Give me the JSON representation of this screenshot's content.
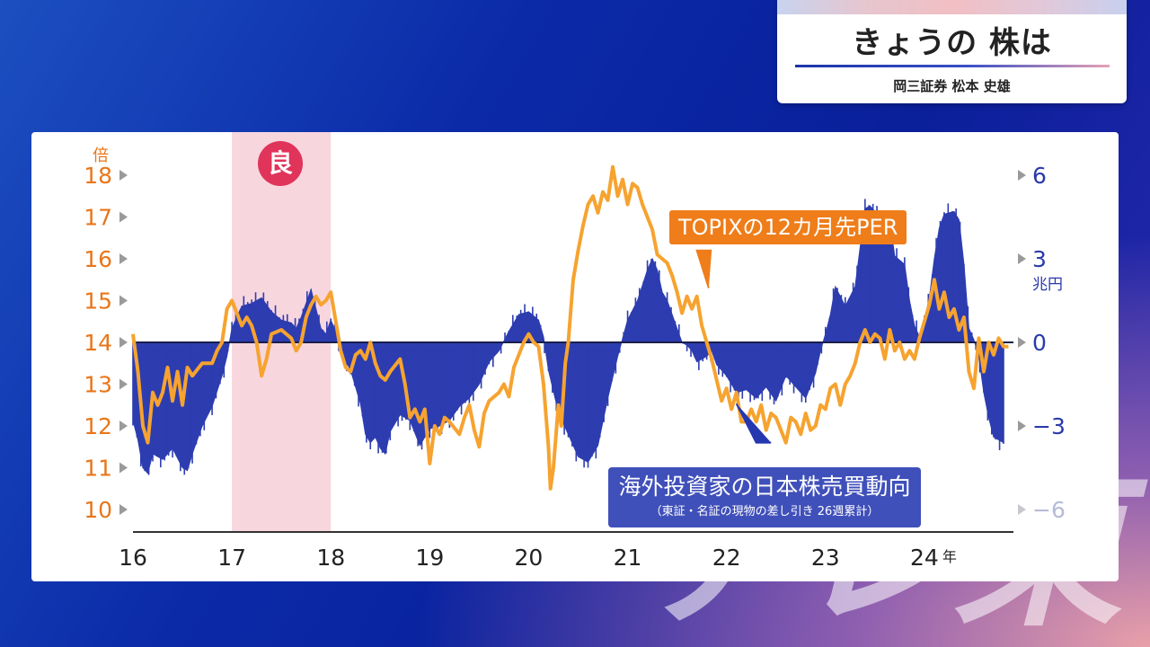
{
  "header": {
    "title": "きょうの 株は",
    "speaker": "岡三証券 松本 史雄"
  },
  "watermark": "テレ東",
  "chart_data": {
    "type": "line+area",
    "left_axis": {
      "unit": "倍",
      "ticks": [
        18,
        17,
        16,
        15,
        14,
        13,
        12,
        11,
        10
      ],
      "range": [
        10,
        18
      ],
      "color": "#e8761a"
    },
    "right_axis": {
      "unit": "兆円",
      "ticks": [
        6,
        3,
        0,
        -3,
        -6
      ],
      "tick_labels": [
        "6",
        "3",
        "0",
        "−3",
        "−6"
      ],
      "range": [
        -6,
        6
      ],
      "color": "#2a3aa8"
    },
    "x_axis": {
      "ticks": [
        "16",
        "17",
        "18",
        "19",
        "20",
        "21",
        "22",
        "23",
        "24"
      ],
      "suffix": "年",
      "range": [
        16,
        24.9
      ]
    },
    "highlight": {
      "label": "良",
      "from": 17,
      "to": 18,
      "color": "#f8d6de"
    },
    "series": [
      {
        "name": "TOPIXの12カ月先PER",
        "axis": "left",
        "color": "#f6a32f",
        "points": [
          [
            16.0,
            14.2
          ],
          [
            16.05,
            13.3
          ],
          [
            16.1,
            12.0
          ],
          [
            16.15,
            11.6
          ],
          [
            16.2,
            12.8
          ],
          [
            16.25,
            12.5
          ],
          [
            16.3,
            12.8
          ],
          [
            16.35,
            13.4
          ],
          [
            16.4,
            12.6
          ],
          [
            16.45,
            13.3
          ],
          [
            16.5,
            12.5
          ],
          [
            16.55,
            13.4
          ],
          [
            16.6,
            13.2
          ],
          [
            16.7,
            13.5
          ],
          [
            16.8,
            13.5
          ],
          [
            16.85,
            13.8
          ],
          [
            16.9,
            14.0
          ],
          [
            16.95,
            14.8
          ],
          [
            17.0,
            15.0
          ],
          [
            17.05,
            14.7
          ],
          [
            17.1,
            14.4
          ],
          [
            17.15,
            14.6
          ],
          [
            17.2,
            14.4
          ],
          [
            17.25,
            14.0
          ],
          [
            17.3,
            13.2
          ],
          [
            17.35,
            13.6
          ],
          [
            17.4,
            14.2
          ],
          [
            17.5,
            14.3
          ],
          [
            17.6,
            14.1
          ],
          [
            17.65,
            13.8
          ],
          [
            17.7,
            14.0
          ],
          [
            17.75,
            14.6
          ],
          [
            17.8,
            14.9
          ],
          [
            17.85,
            15.1
          ],
          [
            17.9,
            14.9
          ],
          [
            17.95,
            15.0
          ],
          [
            18.0,
            15.2
          ],
          [
            18.05,
            14.5
          ],
          [
            18.1,
            13.8
          ],
          [
            18.15,
            13.4
          ],
          [
            18.2,
            13.3
          ],
          [
            18.25,
            13.7
          ],
          [
            18.3,
            13.8
          ],
          [
            18.35,
            13.6
          ],
          [
            18.4,
            14.0
          ],
          [
            18.45,
            13.5
          ],
          [
            18.5,
            13.2
          ],
          [
            18.55,
            13.1
          ],
          [
            18.6,
            13.3
          ],
          [
            18.7,
            13.6
          ],
          [
            18.75,
            13.0
          ],
          [
            18.8,
            12.2
          ],
          [
            18.85,
            12.4
          ],
          [
            18.9,
            12.1
          ],
          [
            18.95,
            12.4
          ],
          [
            19.0,
            11.1
          ],
          [
            19.05,
            12.0
          ],
          [
            19.1,
            11.8
          ],
          [
            19.15,
            12.2
          ],
          [
            19.2,
            12.1
          ],
          [
            19.3,
            11.8
          ],
          [
            19.35,
            12.2
          ],
          [
            19.4,
            12.5
          ],
          [
            19.45,
            11.9
          ],
          [
            19.5,
            11.5
          ],
          [
            19.55,
            12.3
          ],
          [
            19.6,
            12.6
          ],
          [
            19.7,
            12.8
          ],
          [
            19.75,
            13.0
          ],
          [
            19.8,
            12.7
          ],
          [
            19.85,
            13.4
          ],
          [
            19.9,
            13.7
          ],
          [
            19.95,
            14.0
          ],
          [
            20.0,
            14.2
          ],
          [
            20.05,
            14.0
          ],
          [
            20.1,
            13.9
          ],
          [
            20.15,
            13.0
          ],
          [
            20.2,
            11.5
          ],
          [
            20.22,
            10.5
          ],
          [
            20.25,
            11.0
          ],
          [
            20.3,
            12.5
          ],
          [
            20.33,
            12.0
          ],
          [
            20.37,
            13.5
          ],
          [
            20.4,
            14.0
          ],
          [
            20.45,
            15.5
          ],
          [
            20.5,
            16.2
          ],
          [
            20.55,
            16.8
          ],
          [
            20.6,
            17.3
          ],
          [
            20.65,
            17.5
          ],
          [
            20.7,
            17.1
          ],
          [
            20.75,
            17.6
          ],
          [
            20.8,
            17.4
          ],
          [
            20.85,
            18.2
          ],
          [
            20.9,
            17.5
          ],
          [
            20.95,
            17.9
          ],
          [
            21.0,
            17.3
          ],
          [
            21.05,
            17.8
          ],
          [
            21.1,
            17.7
          ],
          [
            21.15,
            17.3
          ],
          [
            21.2,
            17.0
          ],
          [
            21.25,
            16.7
          ],
          [
            21.3,
            16.1
          ],
          [
            21.35,
            16.0
          ],
          [
            21.4,
            15.9
          ],
          [
            21.45,
            15.6
          ],
          [
            21.5,
            15.2
          ],
          [
            21.55,
            14.7
          ],
          [
            21.6,
            15.1
          ],
          [
            21.65,
            14.8
          ],
          [
            21.7,
            15.1
          ],
          [
            21.75,
            14.4
          ],
          [
            21.8,
            14.0
          ],
          [
            21.85,
            13.6
          ],
          [
            21.9,
            13.1
          ],
          [
            21.95,
            12.6
          ],
          [
            22.0,
            12.9
          ],
          [
            22.05,
            12.4
          ],
          [
            22.1,
            12.8
          ],
          [
            22.15,
            12.1
          ],
          [
            22.2,
            12.1
          ],
          [
            22.25,
            12.4
          ],
          [
            22.3,
            12.1
          ],
          [
            22.35,
            12.5
          ],
          [
            22.4,
            11.9
          ],
          [
            22.45,
            12.3
          ],
          [
            22.5,
            12.2
          ],
          [
            22.55,
            11.9
          ],
          [
            22.6,
            11.6
          ],
          [
            22.65,
            12.2
          ],
          [
            22.7,
            12.1
          ],
          [
            22.75,
            11.8
          ],
          [
            22.8,
            12.3
          ],
          [
            22.85,
            11.9
          ],
          [
            22.9,
            12.0
          ],
          [
            22.95,
            12.5
          ],
          [
            23.0,
            12.4
          ],
          [
            23.05,
            12.9
          ],
          [
            23.1,
            13.0
          ],
          [
            23.15,
            12.5
          ],
          [
            23.2,
            13.0
          ],
          [
            23.25,
            13.2
          ],
          [
            23.3,
            13.5
          ],
          [
            23.35,
            14.0
          ],
          [
            23.4,
            14.3
          ],
          [
            23.45,
            14.0
          ],
          [
            23.5,
            14.2
          ],
          [
            23.55,
            14.1
          ],
          [
            23.6,
            13.6
          ],
          [
            23.65,
            14.3
          ],
          [
            23.7,
            13.8
          ],
          [
            23.75,
            14.0
          ],
          [
            23.8,
            13.6
          ],
          [
            23.85,
            13.8
          ],
          [
            23.9,
            13.6
          ],
          [
            23.95,
            14.1
          ],
          [
            24.0,
            14.5
          ],
          [
            24.05,
            14.9
          ],
          [
            24.1,
            15.5
          ],
          [
            24.15,
            14.8
          ],
          [
            24.2,
            15.2
          ],
          [
            24.25,
            14.6
          ],
          [
            24.3,
            14.8
          ],
          [
            24.35,
            14.3
          ],
          [
            24.4,
            14.6
          ],
          [
            24.45,
            13.3
          ],
          [
            24.5,
            12.9
          ],
          [
            24.55,
            14.1
          ],
          [
            24.6,
            13.3
          ],
          [
            24.65,
            14.0
          ],
          [
            24.7,
            13.7
          ],
          [
            24.75,
            14.1
          ],
          [
            24.8,
            13.9
          ],
          [
            24.85,
            13.9
          ]
        ]
      },
      {
        "name": "海外投資家の日本株売買動向",
        "subtitle": "（東証・名証の現物の差し引き 26週累計）",
        "axis": "right",
        "color": "#2d3db0",
        "points": [
          [
            16.0,
            -2.8
          ],
          [
            16.05,
            -3.5
          ],
          [
            16.1,
            -4.5
          ],
          [
            16.15,
            -4.7
          ],
          [
            16.2,
            -4.0
          ],
          [
            16.3,
            -4.2
          ],
          [
            16.4,
            -3.8
          ],
          [
            16.5,
            -4.5
          ],
          [
            16.55,
            -4.6
          ],
          [
            16.6,
            -4.0
          ],
          [
            16.7,
            -3.0
          ],
          [
            16.8,
            -2.3
          ],
          [
            16.9,
            -1.2
          ],
          [
            16.95,
            -0.5
          ],
          [
            17.0,
            0.5
          ],
          [
            17.1,
            1.3
          ],
          [
            17.2,
            1.4
          ],
          [
            17.3,
            1.6
          ],
          [
            17.4,
            1.1
          ],
          [
            17.5,
            0.8
          ],
          [
            17.6,
            0.7
          ],
          [
            17.65,
            0.5
          ],
          [
            17.7,
            0.9
          ],
          [
            17.8,
            1.9
          ],
          [
            17.85,
            1.2
          ],
          [
            17.9,
            0.5
          ],
          [
            17.95,
            0.3
          ],
          [
            18.0,
            0.8
          ],
          [
            18.05,
            0.4
          ],
          [
            18.1,
            -0.3
          ],
          [
            18.2,
            -1.0
          ],
          [
            18.3,
            -2.2
          ],
          [
            18.35,
            -3.3
          ],
          [
            18.4,
            -3.6
          ],
          [
            18.45,
            -3.4
          ],
          [
            18.5,
            -3.8
          ],
          [
            18.55,
            -4.0
          ],
          [
            18.6,
            -3.2
          ],
          [
            18.7,
            -2.6
          ],
          [
            18.8,
            -2.8
          ],
          [
            18.9,
            -3.7
          ],
          [
            19.0,
            -3.1
          ],
          [
            19.1,
            -3.0
          ],
          [
            19.2,
            -2.8
          ],
          [
            19.3,
            -2.3
          ],
          [
            19.4,
            -2.0
          ],
          [
            19.5,
            -1.5
          ],
          [
            19.6,
            -0.7
          ],
          [
            19.7,
            -0.3
          ],
          [
            19.8,
            0.4
          ],
          [
            19.9,
            1.0
          ],
          [
            20.0,
            1.1
          ],
          [
            20.1,
            0.8
          ],
          [
            20.15,
            0.2
          ],
          [
            20.2,
            -1.0
          ],
          [
            20.3,
            -2.5
          ],
          [
            20.4,
            -3.3
          ],
          [
            20.5,
            -4.1
          ],
          [
            20.6,
            -4.3
          ],
          [
            20.7,
            -3.7
          ],
          [
            20.8,
            -2.0
          ],
          [
            20.9,
            -0.5
          ],
          [
            21.0,
            0.8
          ],
          [
            21.1,
            1.5
          ],
          [
            21.2,
            2.6
          ],
          [
            21.25,
            3.0
          ],
          [
            21.3,
            2.6
          ],
          [
            21.35,
            1.8
          ],
          [
            21.4,
            1.5
          ],
          [
            21.5,
            0.5
          ],
          [
            21.55,
            0.0
          ],
          [
            21.6,
            -0.1
          ],
          [
            21.65,
            -0.3
          ],
          [
            21.7,
            -0.7
          ],
          [
            21.8,
            -0.5
          ],
          [
            21.85,
            -0.3
          ],
          [
            21.9,
            -0.8
          ],
          [
            22.0,
            -1.2
          ],
          [
            22.1,
            -1.8
          ],
          [
            22.2,
            -1.7
          ],
          [
            22.3,
            -2.0
          ],
          [
            22.4,
            -1.6
          ],
          [
            22.5,
            -2.1
          ],
          [
            22.6,
            -1.2
          ],
          [
            22.7,
            -1.6
          ],
          [
            22.8,
            -2.0
          ],
          [
            22.9,
            -1.1
          ],
          [
            22.95,
            -0.3
          ],
          [
            23.0,
            0.3
          ],
          [
            23.05,
            1.0
          ],
          [
            23.1,
            2.0
          ],
          [
            23.2,
            1.3
          ],
          [
            23.3,
            2.0
          ],
          [
            23.4,
            4.8
          ],
          [
            23.45,
            4.9
          ],
          [
            23.5,
            4.7
          ],
          [
            23.55,
            4.5
          ],
          [
            23.6,
            3.8
          ],
          [
            23.65,
            4.4
          ],
          [
            23.7,
            3.1
          ],
          [
            23.8,
            2.8
          ],
          [
            23.85,
            1.5
          ],
          [
            23.9,
            0.6
          ],
          [
            23.95,
            0.2
          ],
          [
            24.0,
            0.8
          ],
          [
            24.05,
            1.6
          ],
          [
            24.1,
            3.0
          ],
          [
            24.15,
            4.1
          ],
          [
            24.2,
            4.6
          ],
          [
            24.3,
            4.7
          ],
          [
            24.35,
            4.4
          ],
          [
            24.4,
            2.8
          ],
          [
            24.45,
            0.5
          ],
          [
            24.5,
            0.1
          ],
          [
            24.55,
            -0.5
          ],
          [
            24.6,
            -1.8
          ],
          [
            24.65,
            -2.7
          ],
          [
            24.7,
            -3.4
          ],
          [
            24.75,
            -3.5
          ],
          [
            24.8,
            -3.6
          ]
        ]
      }
    ],
    "grid": false,
    "zero_line": true
  }
}
